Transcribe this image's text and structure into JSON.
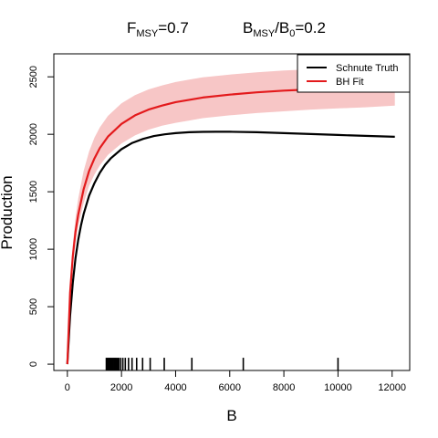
{
  "chart_data": {
    "type": "line",
    "title": {
      "f_main": "F",
      "f_sub": "MSY",
      "f_val": "=0.7",
      "b_main": "B",
      "b_sub": "MSY",
      "b_slash": "/B",
      "b_sub2": "0",
      "b_val": "=0.2"
    },
    "xlabel": "B",
    "ylabel": "Production",
    "xlim": [
      -500,
      12650
    ],
    "ylim": [
      -55,
      2700
    ],
    "xticks": [
      0,
      2000,
      4000,
      6000,
      8000,
      10000,
      12000
    ],
    "yticks": [
      0,
      500,
      1000,
      1500,
      2000,
      2500
    ],
    "grid": false,
    "legend": {
      "position": "top-right",
      "entries": [
        "Schnute Truth",
        "BH Fit"
      ]
    },
    "colors": {
      "truth": "#000000",
      "fit": "#e31a1c",
      "band": "#f7c6c6"
    },
    "series": [
      {
        "name": "Schnute Truth",
        "x": [
          0,
          100,
          200,
          300,
          400,
          500,
          600,
          800,
          1000,
          1200,
          1400,
          1600,
          2000,
          2400,
          2800,
          3200,
          3600,
          4000,
          4500,
          5000,
          5500,
          6000,
          7000,
          8000,
          9000,
          10000,
          11000,
          12100
        ],
        "y": [
          0,
          420,
          710,
          920,
          1080,
          1205,
          1305,
          1465,
          1575,
          1665,
          1735,
          1790,
          1870,
          1925,
          1960,
          1985,
          2000,
          2010,
          2018,
          2021,
          2022,
          2022,
          2018,
          2010,
          2002,
          1994,
          1986,
          1978
        ]
      },
      {
        "name": "BH Fit",
        "x": [
          0,
          100,
          200,
          300,
          400,
          600,
          800,
          1000,
          1200,
          1500,
          2000,
          2500,
          3000,
          3500,
          4000,
          4500,
          5000,
          6000,
          7000,
          8000,
          9000,
          10000,
          11000,
          12100
        ],
        "y": [
          0,
          620,
          940,
          1150,
          1300,
          1520,
          1680,
          1790,
          1880,
          1980,
          2090,
          2165,
          2215,
          2250,
          2280,
          2300,
          2320,
          2345,
          2365,
          2380,
          2390,
          2400,
          2410,
          2418
        ]
      }
    ],
    "band": {
      "x": [
        0,
        100,
        200,
        300,
        400,
        600,
        800,
        1000,
        1200,
        1500,
        2000,
        2500,
        3000,
        3500,
        4000,
        4500,
        5000,
        6000,
        7000,
        8000,
        9000,
        10000,
        11000,
        12100
      ],
      "upper": [
        0,
        700,
        1040,
        1270,
        1440,
        1680,
        1850,
        1970,
        2060,
        2160,
        2270,
        2340,
        2390,
        2425,
        2455,
        2475,
        2495,
        2520,
        2540,
        2555,
        2565,
        2575,
        2582,
        2590
      ],
      "lower": [
        0,
        560,
        860,
        1060,
        1200,
        1400,
        1550,
        1650,
        1730,
        1820,
        1920,
        1990,
        2040,
        2075,
        2100,
        2120,
        2140,
        2165,
        2185,
        2200,
        2215,
        2225,
        2235,
        2250
      ]
    },
    "rug": [
      1440,
      1480,
      1520,
      1560,
      1600,
      1640,
      1680,
      1720,
      1760,
      1800,
      1850,
      1900,
      1970,
      2050,
      2140,
      2260,
      2390,
      2560,
      2780,
      3060,
      3580,
      4600,
      6500,
      10000
    ]
  }
}
